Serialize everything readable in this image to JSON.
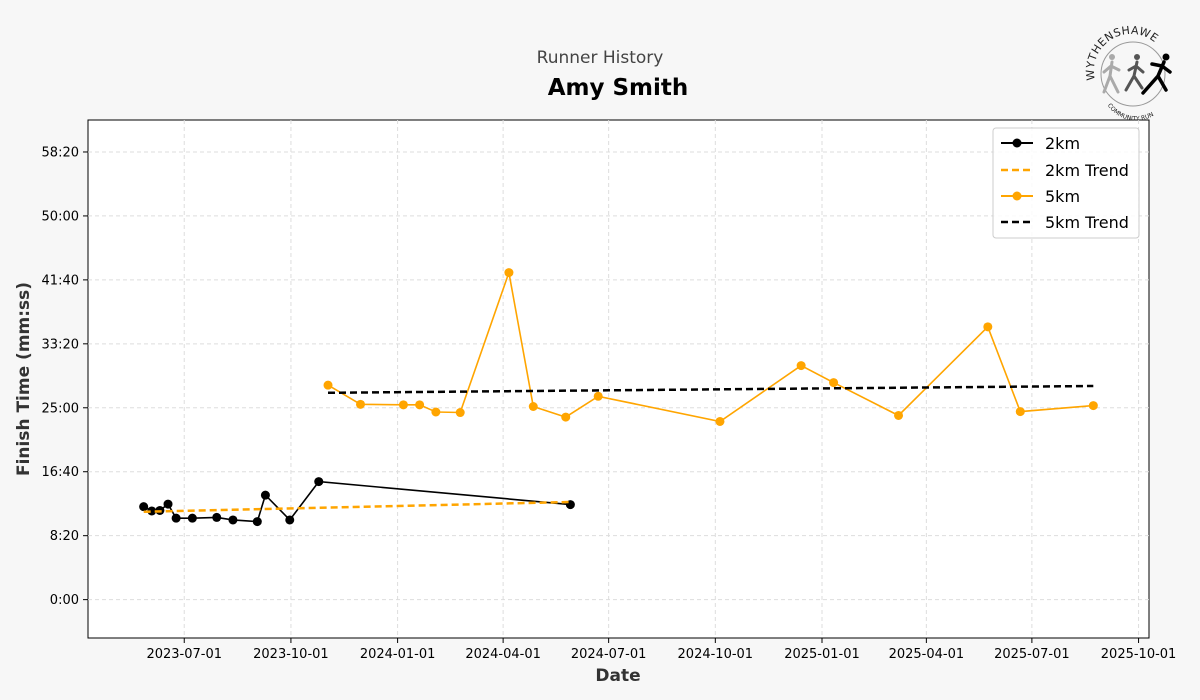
{
  "header": {
    "subtitle": "Runner History",
    "title": "Amy Smith"
  },
  "logo": {
    "name": "WYTHENSHAWE",
    "tagline": "COMMUNITY RUN"
  },
  "colors": {
    "black_series": "#000000",
    "orange_series": "#FFA500",
    "grid": "#dddddd",
    "background": "#f7f7f7"
  },
  "chart_data": {
    "type": "line",
    "xlabel": "Date",
    "ylabel": "Finish Time (mm:ss)",
    "xlim": [
      "2023-04-09",
      "2025-10-10"
    ],
    "ylim_seconds": [
      -300,
      3750
    ],
    "x_ticks": [
      "2023-07-01",
      "2023-10-01",
      "2024-01-01",
      "2024-04-01",
      "2024-07-01",
      "2024-10-01",
      "2025-01-01",
      "2025-04-01",
      "2025-07-01",
      "2025-10-01"
    ],
    "y_ticks": [
      {
        "seconds": 0,
        "label": "0:00"
      },
      {
        "seconds": 500,
        "label": "8:20"
      },
      {
        "seconds": 1000,
        "label": "16:40"
      },
      {
        "seconds": 1500,
        "label": "25:00"
      },
      {
        "seconds": 2000,
        "label": "33:20"
      },
      {
        "seconds": 2500,
        "label": "41:40"
      },
      {
        "seconds": 3000,
        "label": "50:00"
      },
      {
        "seconds": 3500,
        "label": "58:20"
      }
    ],
    "grid": true,
    "legend_position": "top-right",
    "series": [
      {
        "name": "2km",
        "color": "#000000",
        "style": "solid-markers",
        "points": [
          {
            "x": "2023-05-27",
            "y": 727
          },
          {
            "x": "2023-06-03",
            "y": 693
          },
          {
            "x": "2023-06-10",
            "y": 697
          },
          {
            "x": "2023-06-17",
            "y": 747
          },
          {
            "x": "2023-06-24",
            "y": 637
          },
          {
            "x": "2023-07-08",
            "y": 637
          },
          {
            "x": "2023-07-29",
            "y": 643
          },
          {
            "x": "2023-08-12",
            "y": 623
          },
          {
            "x": "2023-09-02",
            "y": 610
          },
          {
            "x": "2023-09-09",
            "y": 817
          },
          {
            "x": "2023-09-30",
            "y": 623
          },
          {
            "x": "2023-10-25",
            "y": 923
          },
          {
            "x": "2024-05-29",
            "y": 743
          }
        ]
      },
      {
        "name": "2km Trend",
        "color": "#FFA500",
        "style": "dashed",
        "points": [
          {
            "x": "2023-05-27",
            "y": 687
          },
          {
            "x": "2024-05-29",
            "y": 763
          }
        ]
      },
      {
        "name": "5km",
        "color": "#FFA500",
        "style": "solid-markers",
        "points": [
          {
            "x": "2023-11-02",
            "y": 1677
          },
          {
            "x": "2023-11-30",
            "y": 1527
          },
          {
            "x": "2024-01-06",
            "y": 1523
          },
          {
            "x": "2024-01-20",
            "y": 1523
          },
          {
            "x": "2024-02-03",
            "y": 1467
          },
          {
            "x": "2024-02-24",
            "y": 1463
          },
          {
            "x": "2024-04-06",
            "y": 2557
          },
          {
            "x": "2024-04-27",
            "y": 1510
          },
          {
            "x": "2024-05-25",
            "y": 1427
          },
          {
            "x": "2024-06-22",
            "y": 1590
          },
          {
            "x": "2024-10-05",
            "y": 1393
          },
          {
            "x": "2024-12-14",
            "y": 1830
          },
          {
            "x": "2025-01-11",
            "y": 1697
          },
          {
            "x": "2025-03-08",
            "y": 1440
          },
          {
            "x": "2025-05-24",
            "y": 2133
          },
          {
            "x": "2025-06-21",
            "y": 1470
          },
          {
            "x": "2025-08-23",
            "y": 1517
          }
        ]
      },
      {
        "name": "5km Trend",
        "color": "#000000",
        "style": "dashed",
        "points": [
          {
            "x": "2023-11-02",
            "y": 1617
          },
          {
            "x": "2025-08-23",
            "y": 1670
          }
        ]
      }
    ]
  }
}
